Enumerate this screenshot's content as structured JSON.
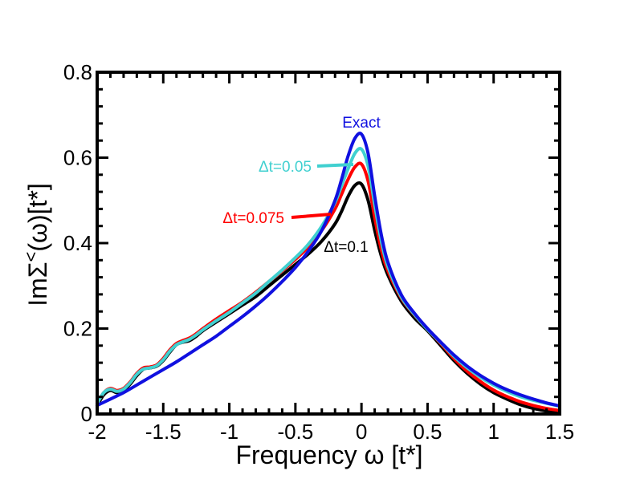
{
  "chart_data": {
    "type": "line",
    "title": "",
    "xlabel": "Frequency ω [t*]",
    "ylabel": {
      "main": "ImΣ",
      "superscript": "<",
      "tail": "(ω)[t*]"
    },
    "xlim": [
      -2,
      1.5
    ],
    "ylim": [
      0,
      0.8
    ],
    "xticks": [
      -2,
      -1.5,
      -1,
      -0.5,
      0,
      0.5,
      1,
      1.5
    ],
    "xtick_labels": [
      "-2",
      "-1.5",
      "-1",
      "-0.5",
      "0",
      "0.5",
      "1",
      "1.5"
    ],
    "yticks": [
      0,
      0.2,
      0.4,
      0.6,
      0.8
    ],
    "ytick_labels": [
      "0",
      "0.2",
      "0.4",
      "0.6",
      "0.8"
    ],
    "grid": false,
    "series": [
      {
        "name": "Δt=0.1",
        "color": "#000000",
        "x": [
          -2.0,
          -1.95,
          -1.9,
          -1.85,
          -1.8,
          -1.75,
          -1.7,
          -1.65,
          -1.6,
          -1.55,
          -1.5,
          -1.45,
          -1.4,
          -1.35,
          -1.3,
          -1.25,
          -1.2,
          -1.1,
          -1.0,
          -0.9,
          -0.8,
          -0.7,
          -0.6,
          -0.5,
          -0.4,
          -0.3,
          -0.2,
          -0.15,
          -0.1,
          -0.05,
          0.0,
          0.05,
          0.1,
          0.15,
          0.2,
          0.3,
          0.4,
          0.5,
          0.6,
          0.7,
          0.8,
          0.9,
          1.0,
          1.1,
          1.2,
          1.3,
          1.4,
          1.5
        ],
        "y": [
          0.02,
          0.045,
          0.055,
          0.05,
          0.055,
          0.07,
          0.09,
          0.105,
          0.108,
          0.112,
          0.125,
          0.145,
          0.162,
          0.168,
          0.172,
          0.182,
          0.195,
          0.215,
          0.235,
          0.255,
          0.275,
          0.3,
          0.325,
          0.35,
          0.375,
          0.405,
          0.445,
          0.475,
          0.51,
          0.535,
          0.538,
          0.5,
          0.43,
          0.37,
          0.325,
          0.265,
          0.225,
          0.195,
          0.16,
          0.125,
          0.095,
          0.07,
          0.05,
          0.035,
          0.022,
          0.013,
          0.007,
          0.002
        ]
      },
      {
        "name": "Δt=0.075",
        "color": "#ff0000",
        "x": [
          -2.0,
          -1.95,
          -1.9,
          -1.85,
          -1.8,
          -1.75,
          -1.7,
          -1.65,
          -1.6,
          -1.55,
          -1.5,
          -1.45,
          -1.4,
          -1.35,
          -1.3,
          -1.25,
          -1.2,
          -1.1,
          -1.0,
          -0.9,
          -0.8,
          -0.7,
          -0.6,
          -0.5,
          -0.4,
          -0.3,
          -0.2,
          -0.15,
          -0.1,
          -0.05,
          0.0,
          0.05,
          0.1,
          0.15,
          0.2,
          0.3,
          0.4,
          0.5,
          0.6,
          0.7,
          0.8,
          0.9,
          1.0,
          1.1,
          1.2,
          1.3,
          1.4,
          1.5
        ],
        "y": [
          0.025,
          0.05,
          0.06,
          0.055,
          0.06,
          0.075,
          0.095,
          0.108,
          0.11,
          0.115,
          0.13,
          0.15,
          0.165,
          0.172,
          0.178,
          0.188,
          0.2,
          0.222,
          0.242,
          0.262,
          0.285,
          0.31,
          0.335,
          0.362,
          0.392,
          0.43,
          0.48,
          0.515,
          0.55,
          0.578,
          0.585,
          0.545,
          0.46,
          0.385,
          0.335,
          0.272,
          0.232,
          0.198,
          0.165,
          0.13,
          0.1,
          0.076,
          0.056,
          0.041,
          0.029,
          0.02,
          0.013,
          0.008
        ]
      },
      {
        "name": "Δt=0.05",
        "color": "#40d0d0",
        "x": [
          -2.0,
          -1.95,
          -1.9,
          -1.85,
          -1.8,
          -1.75,
          -1.7,
          -1.65,
          -1.6,
          -1.55,
          -1.5,
          -1.45,
          -1.4,
          -1.35,
          -1.3,
          -1.25,
          -1.2,
          -1.1,
          -1.0,
          -0.9,
          -0.8,
          -0.7,
          -0.6,
          -0.5,
          -0.4,
          -0.3,
          -0.2,
          -0.15,
          -0.1,
          -0.05,
          0.0,
          0.05,
          0.1,
          0.15,
          0.2,
          0.3,
          0.4,
          0.5,
          0.6,
          0.7,
          0.8,
          0.9,
          1.0,
          1.1,
          1.2,
          1.3,
          1.4,
          1.5
        ],
        "y": [
          0.025,
          0.05,
          0.058,
          0.053,
          0.058,
          0.073,
          0.093,
          0.105,
          0.108,
          0.113,
          0.127,
          0.147,
          0.162,
          0.169,
          0.175,
          0.185,
          0.197,
          0.218,
          0.238,
          0.26,
          0.283,
          0.31,
          0.337,
          0.366,
          0.398,
          0.44,
          0.495,
          0.535,
          0.575,
          0.61,
          0.62,
          0.58,
          0.49,
          0.405,
          0.345,
          0.275,
          0.233,
          0.198,
          0.167,
          0.135,
          0.108,
          0.086,
          0.068,
          0.053,
          0.041,
          0.032,
          0.025,
          0.018
        ]
      },
      {
        "name": "Exact",
        "color": "#1010e0",
        "x": [
          -2.0,
          -1.9,
          -1.8,
          -1.7,
          -1.6,
          -1.5,
          -1.4,
          -1.3,
          -1.2,
          -1.1,
          -1.0,
          -0.9,
          -0.8,
          -0.7,
          -0.6,
          -0.5,
          -0.4,
          -0.3,
          -0.2,
          -0.15,
          -0.1,
          -0.05,
          0.0,
          0.05,
          0.1,
          0.15,
          0.2,
          0.3,
          0.4,
          0.5,
          0.6,
          0.7,
          0.8,
          0.9,
          1.0,
          1.1,
          1.2,
          1.3,
          1.4,
          1.5
        ],
        "y": [
          0.02,
          0.035,
          0.05,
          0.068,
          0.086,
          0.104,
          0.122,
          0.142,
          0.162,
          0.182,
          0.205,
          0.228,
          0.253,
          0.28,
          0.31,
          0.343,
          0.382,
          0.43,
          0.5,
          0.55,
          0.605,
          0.645,
          0.655,
          0.61,
          0.51,
          0.42,
          0.355,
          0.28,
          0.236,
          0.2,
          0.168,
          0.138,
          0.112,
          0.09,
          0.072,
          0.057,
          0.045,
          0.035,
          0.026,
          0.019
        ]
      }
    ],
    "annotations": [
      {
        "text": "Exact",
        "series": "Exact",
        "color": "#1010e0"
      },
      {
        "text": "Δt=0.05",
        "series": "Δt=0.05",
        "color": "#40d0d0",
        "arrow": true
      },
      {
        "text": "Δt=0.075",
        "series": "Δt=0.075",
        "color": "#ff0000",
        "arrow": true
      },
      {
        "text": "Δt=0.1",
        "series": "Δt=0.1",
        "color": "#000000"
      }
    ]
  }
}
